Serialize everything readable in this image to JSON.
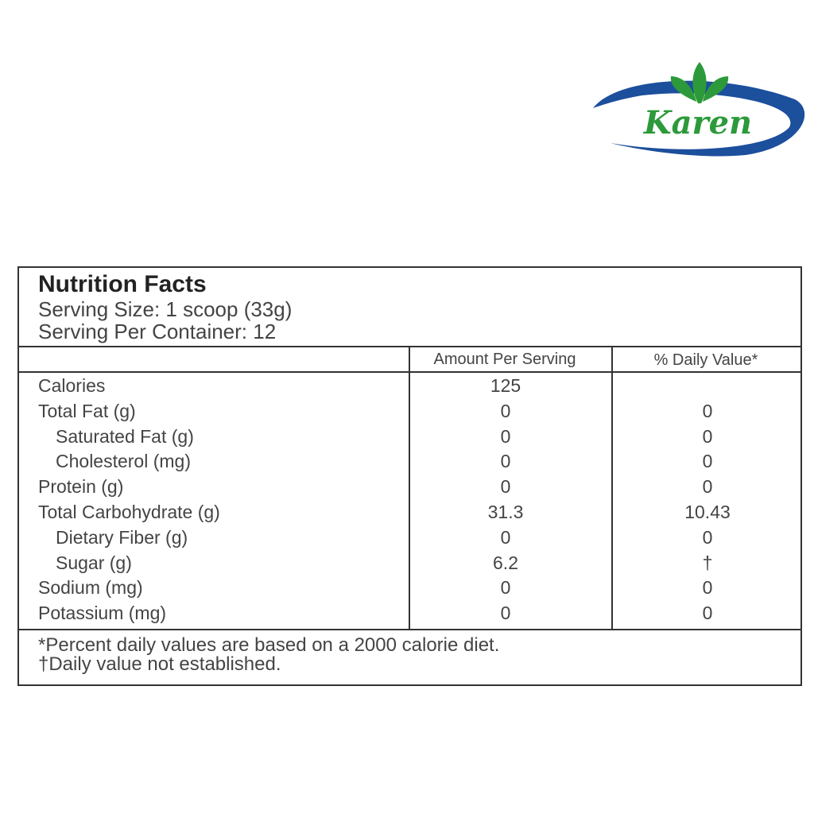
{
  "logo": {
    "text": "Karen"
  },
  "label": {
    "title": "Nutrition Facts",
    "serving_size": "Serving Size: 1 scoop (33g)",
    "servings_per_container": "Serving Per Container: 12",
    "columns": [
      "Amount Per Serving",
      "% Daily Value*"
    ],
    "rows": [
      {
        "label": "Calories",
        "amount": "125"
      },
      {
        "label": "Total Fat (g)",
        "amount": "0",
        "daily_value": "0"
      },
      {
        "label": "Saturated Fat (g)",
        "amount": "0",
        "daily_value": "0"
      },
      {
        "label": "Cholesterol (mg)",
        "amount": "0",
        "daily_value": "0"
      },
      {
        "label": "Protein (g)",
        "amount": "0",
        "daily_value": "0"
      },
      {
        "label": "Total Carbohydrate (g)",
        "amount": "31.3",
        "daily_value": "10.43"
      },
      {
        "label": "Dietary Fiber (g)",
        "amount": "0",
        "daily_value": "0"
      },
      {
        "label": "Sugar (g)",
        "amount": "6.2",
        "daily_value": "†"
      },
      {
        "label": "Sodium (mg)",
        "amount": "0",
        "daily_value": "0"
      },
      {
        "label": "Potassium (mg)",
        "amount": "0",
        "daily_value": "0"
      }
    ],
    "footnotes": [
      "*Percent daily values are based on a 2000 calorie diet.",
      "†Daily value not established."
    ]
  }
}
